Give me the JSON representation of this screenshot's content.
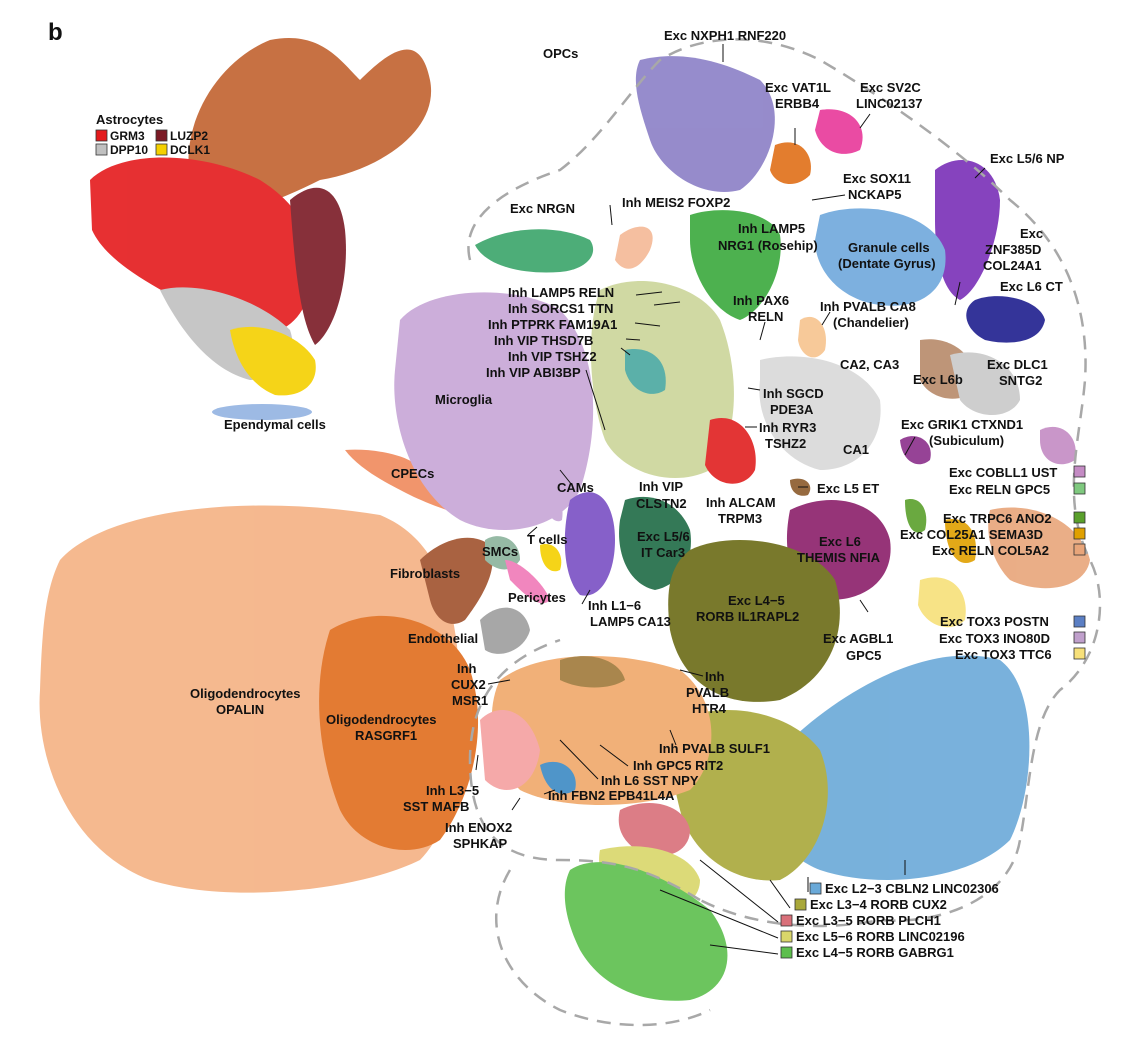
{
  "panel_letter": "b",
  "astrocyte_legend": {
    "title": "Astrocytes",
    "entries": [
      {
        "label": "GRM3",
        "color": "#e41a1c"
      },
      {
        "label": "LUZP2",
        "color": "#7b1a25"
      },
      {
        "label": "DPP10",
        "color": "#c0c0c0"
      },
      {
        "label": "DCLK1",
        "color": "#f5d000"
      }
    ]
  },
  "colors": {
    "opc": "#c1622f",
    "nxph1": "#8b7fc6",
    "vat1l": "#e06f18",
    "sv2c": "#e8389a",
    "l56np": "#7a2fb8",
    "nrgn": "#3aa56a",
    "meis2": "#f5b996",
    "lamp5nrg1": "#3aa93d",
    "granule": "#6fa8dc",
    "l6ct": "#1f1f8f",
    "microglia": "#c7a6d6",
    "ependymal": "#93b3e2",
    "cpecs": "#f08a5d",
    "fibro": "#a0522d",
    "oligo_opalin": "#f4b183",
    "oligo_rasgrf1": "#e06d1e",
    "l4_5_rorb_il1": "#6b6b16",
    "l6_themis": "#8b1f6a",
    "l5_6_itcar3": "#1f6b45",
    "inh_l1_6": "#7a4fc4",
    "l2_3": "#6aa9d8",
    "l3_4": "#a9a83a",
    "l4_5_gabrg1": "#5dbf4d",
    "l5_6_rorb": "#d9d66a",
    "l3_5_plch1": "#d9707a",
    "alcam": "#e02020"
  },
  "labels": {
    "opcs": "OPCs",
    "exc_nxph1": "Exc NXPH1 RNF220",
    "exc_vat1l_1": "Exc VAT1L",
    "exc_vat1l_2": "ERBB4",
    "exc_sv2c_1": "Exc SV2C",
    "exc_sv2c_2": "LINC02137",
    "exc_l56np": "Exc L5/6 NP",
    "exc_sox11_1": "Exc SOX11",
    "exc_sox11_2": "NCKAP5",
    "exc_nrgn": "Exc NRGN",
    "inh_meis2": "Inh MEIS2 FOXP2",
    "inh_lamp5_nrg1_1": "Inh LAMP5",
    "inh_lamp5_nrg1_2": "NRG1 (Rosehip)",
    "granule_1": "Granule cells",
    "granule_2": "(Dentate Gyrus)",
    "exc_znf_1": "Exc",
    "exc_znf_2": "ZNF385D",
    "exc_znf_3": "COL24A1",
    "exc_l6ct": "Exc L6 CT",
    "inh_lamp5_reln": "Inh LAMP5 RELN",
    "inh_sorcs1": "Inh SORCS1 TTN",
    "inh_ptprk": "Inh PTPRK FAM19A1",
    "inh_vip_thsd7b": "Inh VIP THSD7B",
    "inh_vip_tshz2": "Inh VIP TSHZ2",
    "inh_vip_abi3bp": "Inh VIP ABI3BP",
    "inh_pax6_1": "Inh PAX6",
    "inh_pax6_2": "RELN",
    "inh_pvalb_ca8_1": "Inh PVALB CA8",
    "inh_pvalb_ca8_2": "(Chandelier)",
    "ca2_ca3": "CA2, CA3",
    "exc_l6b": "Exc L6b",
    "exc_dlc1_1": "Exc DLC1",
    "exc_dlc1_2": "SNTG2",
    "microglia": "Microglia",
    "inh_sgcd_1": "Inh SGCD",
    "inh_sgcd_2": "PDE3A",
    "inh_ryr3_1": "Inh RYR3",
    "inh_ryr3_2": "TSHZ2",
    "exc_grik1_1": "Exc GRIK1 CTXND1",
    "exc_grik1_2": "(Subiculum)",
    "ca1": "CA1",
    "ependymal": "Ependymal cells",
    "cpecs": "CPECs",
    "cams": "CAMs",
    "inh_vip_clstn2_1": "Inh VIP",
    "inh_vip_clstn2_2": "CLSTN2",
    "inh_alcam_1": "Inh ALCAM",
    "inh_alcam_2": "TRPM3",
    "exc_l5et": "Exc L5 ET",
    "exc_cobll1": "Exc COBLL1 UST",
    "exc_reln_gpc5": "Exc RELN GPC5",
    "exc_trpc6": "Exc TRPC6 ANO2",
    "exc_col25a1": "Exc COL25A1 SEMA3D",
    "exc_reln_col5a2": "Exc RELN COL5A2",
    "t_cells": "T cells",
    "smcs": "SMCs",
    "exc_l56_itcar3_1": "Exc L5/6",
    "exc_l56_itcar3_2": "IT Car3",
    "exc_l6_themis_1": "Exc L6",
    "exc_l6_themis_2": "THEMIS NFIA",
    "fibroblasts": "Fibroblasts",
    "pericytes": "Pericytes",
    "inh_l16_1": "Inh L1−6",
    "inh_l16_2": "LAMP5 CA13",
    "exc_l45_rorb_1": "Exc L4−5",
    "exc_l45_rorb_2": "RORB IL1RAPL2",
    "exc_tox3_postn": "Exc TOX3 POSTN",
    "exc_tox3_ino80d": "Exc TOX3 INO80D",
    "exc_tox3_ttc6": "Exc TOX3 TTC6",
    "endothelial": "Endothelial",
    "exc_agbl1_1": "Exc AGBL1",
    "exc_agbl1_2": "GPC5",
    "inh_cux2_1": "Inh",
    "inh_cux2_2": "CUX2",
    "inh_cux2_3": "MSR1",
    "inh_pvalb_htr4_1": "Inh",
    "inh_pvalb_htr4_2": "PVALB",
    "inh_pvalb_htr4_3": "HTR4",
    "oligo_opalin_1": "Oligodendrocytes",
    "oligo_opalin_2": "OPALIN",
    "oligo_rasgrf1_1": "Oligodendrocytes",
    "oligo_rasgrf1_2": "RASGRF1",
    "inh_pvalb_sulf1": "Inh PVALB SULF1",
    "inh_gpc5_rit2": "Inh GPC5 RIT2",
    "inh_l6_sst_npy": "Inh L6 SST NPY",
    "inh_fbn2": "Inh FBN2 EPB41L4A",
    "inh_l35_sst_1": "Inh L3−5",
    "inh_l35_sst_2": "SST MAFB",
    "inh_enox2_1": "Inh ENOX2",
    "inh_enox2_2": "SPHKAP"
  },
  "bottom_legend": [
    {
      "label": "Exc L2−3 CBLN2 LINC02306",
      "color": "#6aa9d8"
    },
    {
      "label": "Exc L3−4 RORB CUX2",
      "color": "#a9a83a"
    },
    {
      "label": "Exc L3−5 RORB PLCH1",
      "color": "#d9707a"
    },
    {
      "label": "Exc L5−6 RORB LINC02196",
      "color": "#d9d66a"
    },
    {
      "label": "Exc L4−5 RORB GABRG1",
      "color": "#5dbf4d"
    }
  ],
  "right_swatches": {
    "cobll1": "#c48bc4",
    "reln_gpc5": "#7fc97f",
    "trpc6": "#5aa02c",
    "col25a1": "#e0a000",
    "reln_col5a2": "#e8a57a",
    "tox3_postn": "#5b7fc4",
    "tox3_ino80d": "#c0a0cc",
    "tox3_ttc6": "#f7e07a"
  }
}
